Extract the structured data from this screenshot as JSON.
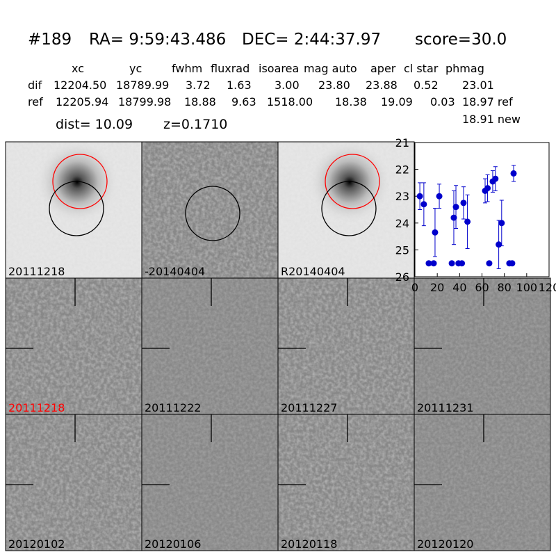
{
  "header": {
    "id": "#189",
    "ra": "RA= 9:59:43.486",
    "dec": "DEC= 2:44:37.97",
    "score": "score=30.0"
  },
  "table": {
    "columns": [
      "xc",
      "yc",
      "fwhm",
      "fluxrad",
      "isoarea",
      "mag auto",
      "aper",
      "cl star",
      "phmag"
    ],
    "rows": [
      [
        "dif",
        "12204.50",
        "18789.99",
        "3.72",
        "1.63",
        "3.00",
        "23.80",
        "23.88",
        "0.52",
        "23.01"
      ],
      [
        "ref",
        "12205.94",
        "18799.98",
        "18.88",
        "9.63",
        "1518.00",
        "18.38",
        "19.09",
        "0.03",
        "18.97 ref"
      ]
    ],
    "extra": "18.91 new"
  },
  "dist": "dist= 10.09",
  "redshift": "z=0.1710",
  "stamps": [
    "20111218",
    "-20140404",
    "R20140404",
    "20111218",
    "20111222",
    "20111227",
    "20111231",
    "20120102",
    "20120106",
    "20120118",
    "20120120"
  ],
  "chart_data": {
    "type": "errorbar",
    "color": "#0000cc",
    "x": [
      4.4,
      8,
      12.4,
      16.8,
      18,
      21.8,
      33,
      34.8,
      36.7,
      39,
      42,
      43.5,
      47,
      62.8,
      65,
      66.5,
      69.6,
      72,
      75,
      77.6,
      84.5,
      87,
      88.3
    ],
    "values": [
      23.0,
      23.3,
      25.5,
      25.5,
      24.35,
      23.0,
      25.5,
      23.8,
      23.4,
      25.5,
      25.5,
      23.25,
      23.95,
      22.8,
      22.7,
      25.5,
      22.45,
      22.35,
      24.8,
      24.0,
      25.5,
      25.5,
      22.15
    ],
    "errors": [
      0.5,
      0.8,
      null,
      null,
      0.9,
      0.45,
      null,
      1.0,
      0.8,
      null,
      null,
      0.6,
      1.0,
      0.45,
      0.5,
      null,
      0.4,
      0.45,
      0.9,
      0.85,
      null,
      null,
      0.3
    ],
    "xlim": [
      0,
      120
    ],
    "xticks": [
      0,
      20,
      40,
      60,
      80,
      100,
      120
    ],
    "ylim": [
      21,
      26
    ],
    "yticks": [
      21,
      22,
      23,
      24,
      25,
      26
    ],
    "y_inverted": true
  }
}
